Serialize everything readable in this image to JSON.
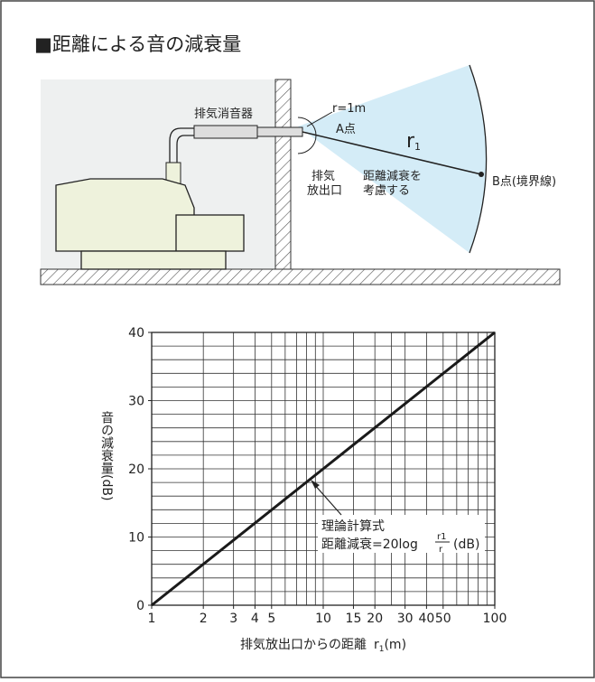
{
  "title": "■距離による音の減衰量",
  "diagram": {
    "muffler": "排気消音器",
    "radius": "r=1m",
    "point_a": "A点",
    "r1_symbol": "r",
    "r1_sub": "1",
    "outlet_1": "排気",
    "outlet_2": "放出口",
    "consider_1": "距離減衰を",
    "consider_2": "考慮する",
    "point_b": "B点(境界線)"
  },
  "chart_data": {
    "type": "line",
    "xscale": "log",
    "x": [
      1,
      10,
      100
    ],
    "series": [
      {
        "color": "#1a1a1a",
        "values": [
          0,
          20,
          40
        ]
      }
    ],
    "xlim": [
      1,
      100
    ],
    "ylim": [
      0,
      40
    ],
    "xticks": [
      1,
      2,
      3,
      4,
      5,
      10,
      15,
      20,
      30,
      40,
      50,
      100
    ],
    "yticks": [
      0,
      10,
      20,
      30,
      40
    ],
    "xgrid": [
      1,
      2,
      3,
      4,
      5,
      6,
      7,
      8,
      9,
      10,
      15,
      20,
      25,
      30,
      40,
      50,
      60,
      70,
      80,
      90,
      100
    ],
    "ygrid": [
      0,
      2,
      4,
      6,
      8,
      10,
      12,
      14,
      16,
      18,
      20,
      22,
      24,
      26,
      28,
      30,
      32,
      34,
      36,
      38,
      40
    ],
    "ylabel": "音の減衰量(dB)",
    "xlabel": "排気放出口からの距離",
    "xlabel_symbol": "r",
    "xlabel_sub": "1",
    "xlabel_unit": "(m)",
    "annotation": "理論計算式",
    "formula_prefix": "距離減衰=20log",
    "formula_num": "r1",
    "formula_den": "r",
    "formula_unit": "(dB)"
  }
}
